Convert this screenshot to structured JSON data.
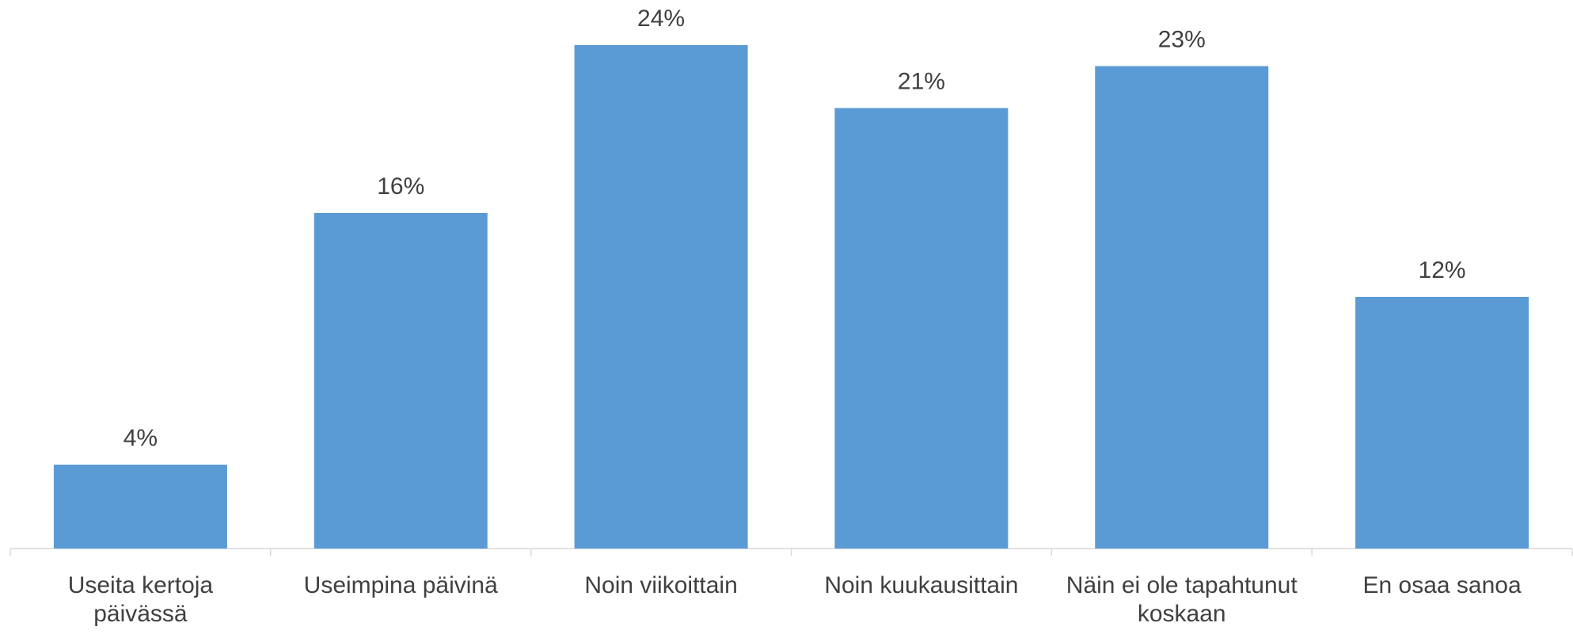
{
  "chart_data": {
    "type": "bar",
    "categories": [
      "Useita kertoja päivässä",
      "Useimpina päivinä",
      "Noin viikoittain",
      "Noin kuukausittain",
      "Näin ei ole tapahtunut koskaan",
      "En osaa sanoa"
    ],
    "values": [
      4,
      16,
      24,
      21,
      23,
      12
    ],
    "value_labels": [
      "4%",
      "16%",
      "24%",
      "21%",
      "23%",
      "12%"
    ],
    "color": "#5b9bd5"
  }
}
